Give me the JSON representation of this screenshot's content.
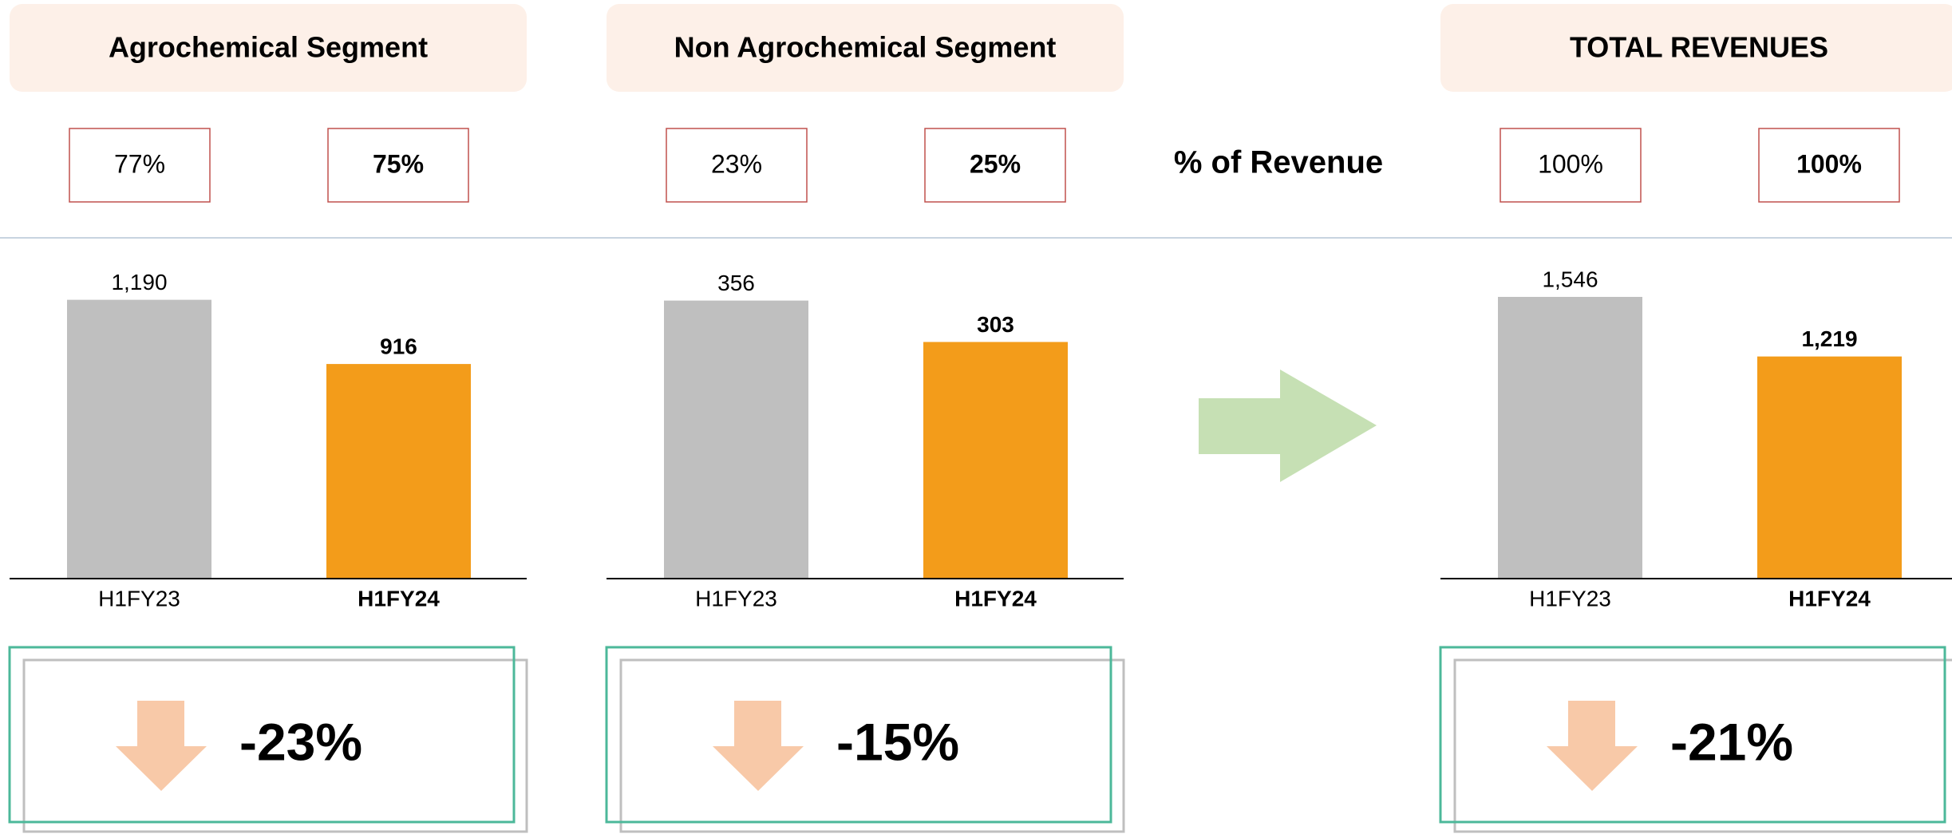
{
  "row_label": "% of Revenue",
  "chart_data": [
    {
      "type": "bar",
      "title": "Agrochemical Segment",
      "categories": [
        "H1FY23",
        "H1FY24"
      ],
      "values": [
        1190,
        916
      ],
      "value_labels": [
        "1,190",
        "916"
      ],
      "colors": [
        "#bfbfbf",
        "#f39c1a"
      ],
      "ylim": [
        0,
        1400
      ],
      "revenue_share": [
        "77%",
        "75%"
      ],
      "change": "-23%"
    },
    {
      "type": "bar",
      "title": "Non Agrochemical Segment",
      "categories": [
        "H1FY23",
        "H1FY24"
      ],
      "values": [
        356,
        303
      ],
      "value_labels": [
        "356",
        "303"
      ],
      "colors": [
        "#bfbfbf",
        "#f39c1a"
      ],
      "ylim": [
        0,
        420
      ],
      "revenue_share": [
        "23%",
        "25%"
      ],
      "change": "-15%"
    },
    {
      "type": "bar",
      "title": "TOTAL REVENUES",
      "categories": [
        "H1FY23",
        "H1FY24"
      ],
      "values": [
        1546,
        1219
      ],
      "value_labels": [
        "1,546",
        "1,219"
      ],
      "colors": [
        "#bfbfbf",
        "#f39c1a"
      ],
      "ylim": [
        0,
        1800
      ],
      "revenue_share": [
        "100%",
        "100%"
      ],
      "change": "-21%"
    }
  ]
}
